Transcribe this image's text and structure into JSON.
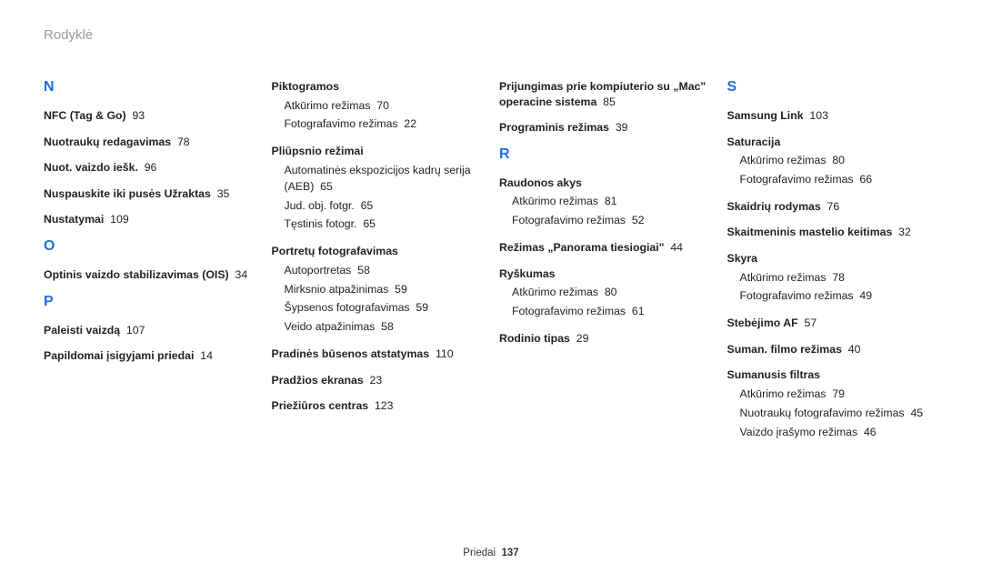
{
  "header": "Rodyklė",
  "footer": {
    "label": "Priedai",
    "page": "137"
  },
  "colors": {
    "accent": "#1f6fd1",
    "header_text": "#9a9a9a",
    "body_text": "#222222",
    "background": "#ffffff"
  },
  "col1": {
    "letter_N": "N",
    "n_items": [
      {
        "t": "NFC (Tag & Go)",
        "p": "93"
      },
      {
        "t": "Nuotraukų redagavimas",
        "p": "78"
      },
      {
        "t": "Nuot. vaizdo iešk.",
        "p": "96"
      },
      {
        "t": "Nuspauskite iki pusės Užraktas",
        "p": "35"
      },
      {
        "t": "Nustatymai",
        "p": "109"
      }
    ],
    "letter_O": "O",
    "o_items": [
      {
        "t": "Optinis vaizdo stabilizavimas (OIS)",
        "p": "34"
      }
    ],
    "letter_P": "P",
    "p_items": [
      {
        "t": "Paleisti vaizdą",
        "p": "107"
      },
      {
        "t": "Papildomai įsigyjami priedai",
        "p": "14"
      }
    ]
  },
  "col2": {
    "piktogramos": {
      "head": "Piktogramos",
      "subs": [
        {
          "t": "Atkūrimo režimas",
          "p": "70"
        },
        {
          "t": "Fotografavimo režimas",
          "p": "22"
        }
      ]
    },
    "pliupsnio": {
      "head": "Pliūpsnio režimai",
      "subs": [
        {
          "t": "Automatinės ekspozicijos kadrų serija (AEB)",
          "p": "65"
        },
        {
          "t": "Jud. obj. fotgr.",
          "p": "65"
        },
        {
          "t": "Tęstinis fotogr.",
          "p": "65"
        }
      ]
    },
    "portretu": {
      "head": "Portretų fotografavimas",
      "subs": [
        {
          "t": "Autoportretas",
          "p": "58"
        },
        {
          "t": "Mirksnio atpažinimas",
          "p": "59"
        },
        {
          "t": "Šypsenos fotografavimas",
          "p": "59"
        },
        {
          "t": "Veido atpažinimas",
          "p": "58"
        }
      ]
    },
    "rest": [
      {
        "t": "Pradinės būsenos atstatymas",
        "p": "110"
      },
      {
        "t": "Pradžios ekranas",
        "p": "23"
      },
      {
        "t": "Priežiūros centras",
        "p": "123"
      }
    ]
  },
  "col3": {
    "top": [
      {
        "t": "Prijungimas prie kompiuterio su „Mac\" operacine sistema",
        "p": "85"
      },
      {
        "t": "Programinis režimas",
        "p": "39"
      }
    ],
    "letter_R": "R",
    "raudonos": {
      "head": "Raudonos akys",
      "subs": [
        {
          "t": "Atkūrimo režimas",
          "p": "81"
        },
        {
          "t": "Fotografavimo režimas",
          "p": "52"
        }
      ]
    },
    "rezimas": {
      "t": "Režimas „Panorama tiesiogiai\"",
      "p": "44"
    },
    "ryskumas": {
      "head": "Ryškumas",
      "subs": [
        {
          "t": "Atkūrimo režimas",
          "p": "80"
        },
        {
          "t": "Fotografavimo režimas",
          "p": "61"
        }
      ]
    },
    "rodinio": {
      "t": "Rodinio tipas",
      "p": "29"
    }
  },
  "col4": {
    "letter_S": "S",
    "samsung": {
      "t": "Samsung Link",
      "p": "103"
    },
    "saturacija": {
      "head": "Saturacija",
      "subs": [
        {
          "t": "Atkūrimo režimas",
          "p": "80"
        },
        {
          "t": "Fotografavimo režimas",
          "p": "66"
        }
      ]
    },
    "skaidriu": {
      "t": "Skaidrių rodymas",
      "p": "76"
    },
    "skaitmeninis": {
      "t": "Skaitmeninis mastelio keitimas",
      "p": "32"
    },
    "skyra": {
      "head": "Skyra",
      "subs": [
        {
          "t": "Atkūrimo režimas",
          "p": "78"
        },
        {
          "t": "Fotografavimo režimas",
          "p": "49"
        }
      ]
    },
    "stebejimo": {
      "t": "Stebėjimo AF",
      "p": "57"
    },
    "suman_filmo": {
      "t": "Suman. filmo režimas",
      "p": "40"
    },
    "sumanusis": {
      "head": "Sumanusis filtras",
      "subs": [
        {
          "t": "Atkūrimo režimas",
          "p": "79"
        },
        {
          "t": "Nuotraukų fotografavimo režimas",
          "p": "45"
        },
        {
          "t": "Vaizdo įrašymo režimas",
          "p": "46"
        }
      ]
    }
  }
}
